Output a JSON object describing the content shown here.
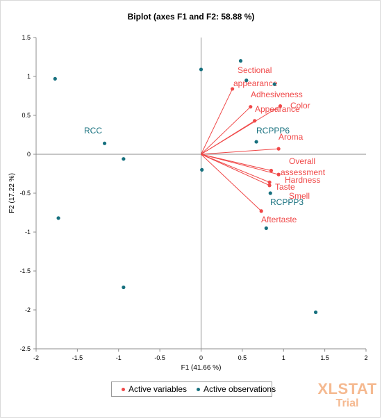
{
  "chart_data": {
    "type": "scatter",
    "title": "Biplot (axes F1 and F2: 58.88 %)",
    "xlabel": "F1 (41.66 %)",
    "ylabel": "F2 (17.22 %)",
    "xlim": [
      -2,
      2
    ],
    "ylim": [
      -2.5,
      1.5
    ],
    "xticks": [
      "-2",
      "-1.5",
      "-1",
      "-0.5",
      "0",
      "0.5",
      "1",
      "1.5",
      "2"
    ],
    "yticks": [
      "-2.5",
      "-2",
      "-1.5",
      "-1",
      "-0.5",
      "0",
      "0.5",
      "1",
      "1.5"
    ],
    "grid": false,
    "variables": [
      {
        "label": "Sectional appearance",
        "x": 0.38,
        "y": 0.84
      },
      {
        "label": "Adhesiveness",
        "x": 0.6,
        "y": 0.61
      },
      {
        "label": "Color",
        "x": 0.96,
        "y": 0.62
      },
      {
        "label": "Appearance",
        "x": 0.65,
        "y": 0.43
      },
      {
        "label": "Aroma",
        "x": 0.94,
        "y": 0.07
      },
      {
        "label": "Overall assessment",
        "x": 0.85,
        "y": -0.21
      },
      {
        "label": "Hardness",
        "x": 0.94,
        "y": -0.26
      },
      {
        "label": "Taste",
        "x": 0.83,
        "y": -0.36
      },
      {
        "label": "Smell",
        "x": 0.83,
        "y": -0.4
      },
      {
        "label": "Aftertaste",
        "x": 0.73,
        "y": -0.73
      }
    ],
    "observations": [
      {
        "label": "",
        "x": -1.77,
        "y": 0.97
      },
      {
        "label": "RCC",
        "x": -1.17,
        "y": 0.14
      },
      {
        "label": "",
        "x": -0.94,
        "y": -0.06
      },
      {
        "label": "",
        "x": -1.73,
        "y": -0.82
      },
      {
        "label": "",
        "x": -0.94,
        "y": -1.71
      },
      {
        "label": "",
        "x": 0.0,
        "y": 1.09
      },
      {
        "label": "",
        "x": 0.48,
        "y": 1.2
      },
      {
        "label": "",
        "x": 0.55,
        "y": 0.95
      },
      {
        "label": "",
        "x": 0.89,
        "y": 0.9
      },
      {
        "label": "RCPPP6",
        "x": 0.67,
        "y": 0.16
      },
      {
        "label": "",
        "x": 0.01,
        "y": -0.2
      },
      {
        "label": "RCPPP3",
        "x": 0.84,
        "y": -0.5
      },
      {
        "label": "",
        "x": 0.79,
        "y": -0.95
      },
      {
        "label": "",
        "x": 1.39,
        "y": -2.03
      }
    ],
    "legend": {
      "position": "bottom",
      "entries": [
        {
          "name": "Active variables",
          "color": "#f04848"
        },
        {
          "name": "Active observations",
          "color": "#16707e"
        }
      ]
    },
    "colors": {
      "variables": "#f04848",
      "observations": "#16707e"
    }
  },
  "watermark": {
    "line1": "XLSTAT",
    "line2": "Trial"
  }
}
